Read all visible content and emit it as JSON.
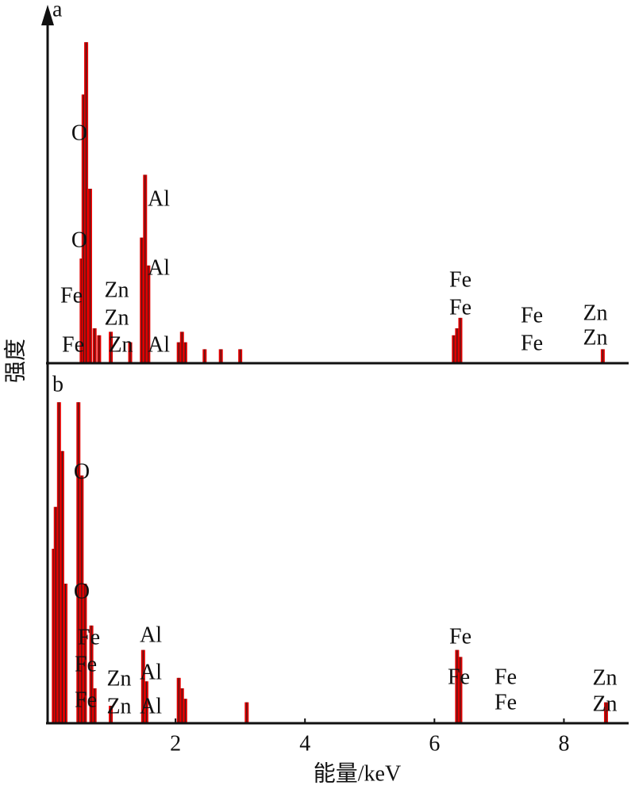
{
  "chart_data": [
    {
      "type": "bar",
      "title": "a",
      "y_label": "强度",
      "color": "#e00000",
      "xlim": [
        0,
        9
      ],
      "ylim": [
        0,
        100
      ],
      "x": [
        0.55,
        0.58,
        0.62,
        0.68,
        0.75,
        0.82,
        1.0,
        1.3,
        1.48,
        1.53,
        1.58,
        2.05,
        2.1,
        2.15,
        2.45,
        2.7,
        3.0,
        6.3,
        6.35,
        6.4,
        8.6
      ],
      "values": [
        30,
        77,
        92,
        50,
        10,
        8,
        9,
        6,
        36,
        54,
        28,
        6,
        9,
        6,
        4,
        4,
        4,
        8,
        10,
        13,
        4
      ],
      "annotations": [
        "O",
        "O",
        "Al",
        "Al",
        "Fe",
        "Zn",
        "Zn",
        "Fe",
        "Zn",
        "Al",
        "Fe",
        "Fe",
        "Fe",
        "Fe",
        "Zn",
        "Zn"
      ]
    },
    {
      "type": "bar",
      "title": "b",
      "x_label": "能量/keV",
      "color": "#e00000",
      "xlim": [
        0,
        9
      ],
      "ylim": [
        0,
        100
      ],
      "xticks": [
        2,
        4,
        6,
        8
      ],
      "x": [
        0.12,
        0.15,
        0.2,
        0.25,
        0.3,
        0.5,
        0.55,
        0.6,
        0.7,
        0.75,
        1.0,
        1.5,
        1.55,
        2.05,
        2.1,
        2.15,
        3.1,
        6.35,
        6.4,
        8.65
      ],
      "values": [
        50,
        62,
        92,
        78,
        40,
        92,
        71,
        40,
        28,
        10,
        5,
        21,
        12,
        13,
        10,
        7,
        6,
        21,
        19,
        6
      ],
      "annotations": [
        "O",
        "O",
        "Al",
        "Al",
        "Al",
        "Fe",
        "Fe",
        "Fe",
        "Zn",
        "Zn",
        "Fe",
        "Fe",
        "Fe",
        "Fe",
        "Zn",
        "Zn"
      ]
    }
  ]
}
